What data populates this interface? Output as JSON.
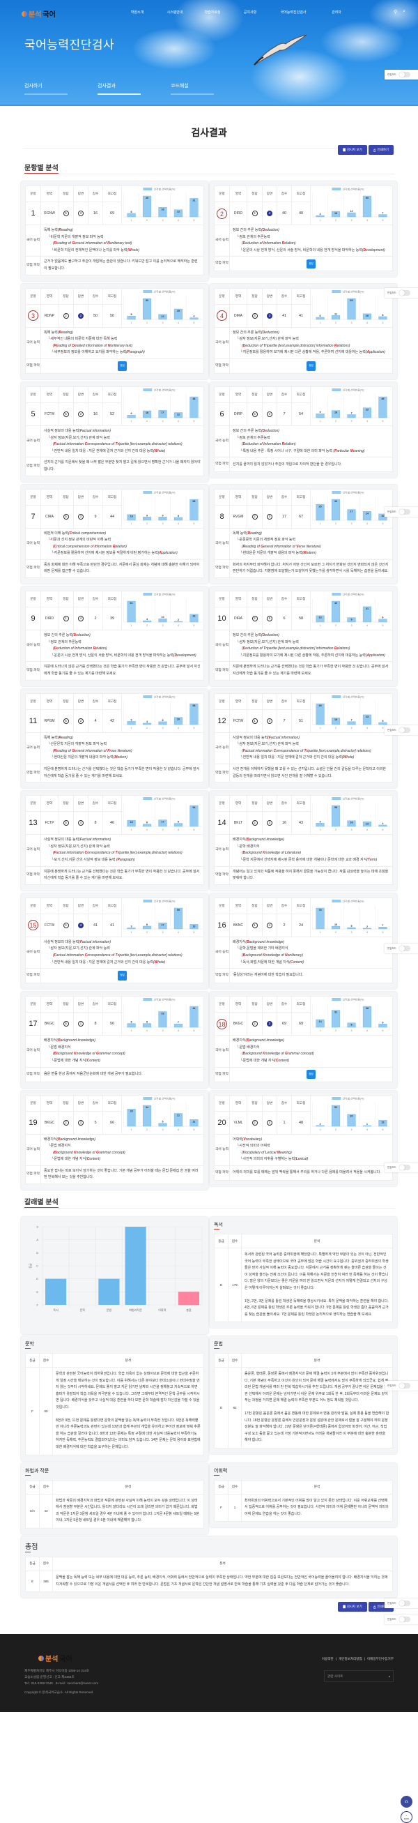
{
  "header": {
    "logo_a": "분석",
    "logo_b": "국어",
    "nav": [
      "학원소개",
      "시스템안내",
      "학습자료실",
      "공지사항",
      "국어능력진단검사",
      "관리자"
    ],
    "hero_title": "국어능력진단검사",
    "tabs": [
      {
        "label": "검사하기",
        "active": false
      },
      {
        "label": "검사결과",
        "active": true
      },
      {
        "label": "코드해설",
        "active": false
      }
    ]
  },
  "page_title": "검사결과",
  "buttons": {
    "view_sheet": "검사지 보기",
    "print": "인쇄하기"
  },
  "edit_mode_label": "편집모드",
  "item_section_title": "문항별 분석",
  "item_table": {
    "headers": [
      "문항",
      "영역",
      "정답",
      "답변",
      "점수",
      "최고점"
    ],
    "ability_label": "국어 능력",
    "weak_label": "약점 파악",
    "correct_badge": "정답",
    "legend": "선지별 선택비율(%)",
    "options": [
      "1",
      "2",
      "3",
      "4",
      "5"
    ]
  },
  "items": [
    {
      "no": "1",
      "area": "RGNW",
      "answer": "5",
      "response": "3",
      "score": "16",
      "max": "69",
      "correct": false,
      "dist": [
        6,
        35,
        16,
        12,
        31
      ],
      "ability": [
        {
          "ko": "독해 능력",
          "en": "(Reading)"
        },
        {
          "ko": "└비문학 지문의 개괄적 정보 파악 능력",
          "en": ""
        },
        {
          "ko": "",
          "en": "(Reading of General information of Nonliterary text)"
        },
        {
          "ko": "└비문학 지문의 전체적인 문맥이나 논지를 파악 능력",
          "en": "(Whole)"
        }
      ],
      "weak": "근거가 없음에도 불구하고 주관이 개입하는 습관이 있습니다. 키워드만 잡고 이를 논리적으로 해석하는 훈련이 필요합니다."
    },
    {
      "no": "2",
      "area": "DIRD",
      "answer": "4",
      "response": "4",
      "score": "40",
      "max": "40",
      "correct": true,
      "dist": [
        4,
        16,
        12,
        60,
        7
      ],
      "ability": [
        {
          "ko": "정보 간의 추론 능력",
          "en": "(Deduction)"
        },
        {
          "ko": "└정보 관계의 추론능력",
          "en": ""
        },
        {
          "ko": "",
          "en": "(Deduction of Information Relation)"
        },
        {
          "ko": "└운문의 시상 전개 방식, 산문의 서술 방식, 비문학의 내용 전개 방식을 파악하는 능력",
          "en": "(Development)"
        }
      ],
      "weak": ""
    },
    {
      "no": "3",
      "area": "RDNP",
      "answer": "2",
      "response": "2",
      "score": "50",
      "max": "50",
      "correct": true,
      "dist": [
        8,
        50,
        12,
        25,
        4
      ],
      "ability": [
        {
          "ko": "독해 능력",
          "en": "(Reading)"
        },
        {
          "ko": "└세부적인 내용의 비문학 지문에 대한 독해 능력",
          "en": ""
        },
        {
          "ko": "",
          "en": "(Reading of Detailed information of Nonliterary text)"
        },
        {
          "ko": "└세부정보의 정보를 이해하고 요지를 파악하는 능력",
          "en": "(Paragraph)"
        }
      ],
      "weak": ""
    },
    {
      "no": "4",
      "area": "DIRA",
      "answer": "3",
      "response": "3",
      "score": "41",
      "max": "41",
      "correct": true,
      "dist": [
        6,
        11,
        59,
        16,
        8
      ],
      "ability": [
        {
          "ko": "정보 간의 추론 능력",
          "en": "(Deduction)"
        },
        {
          "ko": "└삼자 정보(지문,보기,선지) 관계 파악 능력",
          "en": ""
        },
        {
          "ko": "",
          "en": "(Deduction of Tripartite [text,example,distractor] information Relations)"
        },
        {
          "ko": "└지문정보를 활용하여 보기에 제시된 다른 상황에 적용, 추론하여 선지에 대응하는 능력",
          "en": "(Application)"
        }
      ],
      "weak": ""
    },
    {
      "no": "5",
      "area": "FCTW",
      "answer": "5",
      "response": "2",
      "score": "16",
      "max": "52",
      "correct": false,
      "dist": [
        6,
        16,
        17,
        12,
        48
      ],
      "ability": [
        {
          "ko": "사실적 정보의 대응 능력",
          "en": "(Factual information)"
        },
        {
          "ko": "└삼자 정보(지문,보기,선지) 관계 파악 능력",
          "en": ""
        },
        {
          "ko": "",
          "en": "(Factual information Correspondence of Tripartite [text,example,distractor] relations)"
        },
        {
          "ko": "└전반적 내용 일치 대응 : 지문 전체에 걸쳐 근거와 선지 간의 대응 능력",
          "en": "(Whole)"
        }
      ],
      "weak": "선지의 근거를 지문에서 찾을 때 너무 짧은 부분만 찾지 말고 길게 읽으면서 명확한 근거가 나올 때까지 읽어야 합니다."
    },
    {
      "no": "6",
      "area": "DIRP",
      "answer": "5",
      "response": "3",
      "score": "7",
      "max": "54",
      "correct": false,
      "dist": [
        9,
        16,
        7,
        22,
        46
      ],
      "ability": [
        {
          "ko": "정보 간의 추론 능력",
          "en": "(Deduction)"
        },
        {
          "ko": "└정보 관계의 추론능력",
          "en": ""
        },
        {
          "ko": "",
          "en": "(Deduction of Information Relation)"
        },
        {
          "ko": "└특정 내용 추론 : 특정 시어나 시구, 구절에 대한 의미 파악 능력 ",
          "en": "(Particular Meaning)"
        }
      ],
      "weak": "선지를 끝까지 읽지 않았거나 주관의 개입으로 자의적 판단을 한 경우입니다."
    },
    {
      "no": "7",
      "area": "CIRA",
      "answer": "5",
      "response": "3",
      "score": "9",
      "max": "44",
      "correct": false,
      "dist": [
        16,
        9,
        9,
        8,
        58
      ],
      "ability": [
        {
          "ko": "비판적 이해 능력",
          "en": "(Critical comprehension)"
        },
        {
          "ko": "└지문과 선지 정보 관계의 비판적 이해 능력",
          "en": ""
        },
        {
          "ko": "",
          "en": "(Critical comprehension of Information Relation)"
        },
        {
          "ko": "└지문정보를 활용하여 선지에 제시된 정보를 적절하게 비판,평가하는 능력",
          "en": "(Application)"
        }
      ],
      "weak": "중심 화제에 대한 이해 부족으로 판단한 경우입니다. 지문에서 중심 화제는 개념에 대해 충분한 이해가 되어야 비판 문제를 접근할 수 있습니다."
    },
    {
      "no": "8",
      "area": "RVGM",
      "answer": "2",
      "response": "3",
      "score": "17",
      "max": "67",
      "correct": false,
      "dist": [
        25,
        33,
        17,
        14,
        10
      ],
      "ability": [
        {
          "ko": "독해 능력",
          "en": "(Reading)"
        },
        {
          "ko": "└운문문학 지문의 개괄적 정보 파악 능력",
          "en": ""
        },
        {
          "ko": "",
          "en": "(Reading of General information of Verse literature)"
        },
        {
          "ko": "└현대운문 지문의 개괄적 내용의 파악 능력",
          "en": "(Modern)"
        }
      ],
      "weak": "화자의 처지부터 파악해야 합니다. 처지가 어떤 것인지 모르면 그 처지가 변화된 것인지 변화되지 않은 것인지 판단하기 어렵습니다. 지향점에 도달했는가 도달하지 못했는가를 생각하면서 시를 독해하는 습관을 들이세요."
    },
    {
      "no": "9",
      "area": "DIRD",
      "answer": "1",
      "response": "4",
      "score": "2",
      "max": "39",
      "correct": false,
      "dist": [
        61,
        4,
        10,
        2,
        23
      ],
      "ability": [
        {
          "ko": "정보 간의 추론 능력",
          "en": "(Deduction)"
        },
        {
          "ko": "└정보 관계의 추론능력",
          "en": ""
        },
        {
          "ko": "",
          "en": "(Deduction of Information Relation)"
        },
        {
          "ko": "└운문의 시상 전개 방식, 산문의 서술 방식, 비문학의 내용 전개 방식을 파악하는 능력",
          "en": "(Development)"
        }
      ],
      "weak": "지문에 드러나지 않은 근거를 선택했다는 것은 학습 동기가 부족한 면이 작용한 것 같습니다. 공부에 앞서 자신에게 학습 동기를 줄 수 있는 계기를 마련해 보세요."
    },
    {
      "no": "10",
      "area": "DIRA",
      "answer": "2",
      "response": "5",
      "score": "6",
      "max": "58",
      "correct": false,
      "dist": [
        13,
        42,
        9,
        31,
        6
      ],
      "ability": [
        {
          "ko": "정보 간의 추론 능력",
          "en": "(Deduction)"
        },
        {
          "ko": "└삼자 정보(지문,보기,선지) 관계 파악 능력",
          "en": ""
        },
        {
          "ko": "",
          "en": "(Deduction of Tripartite [text,example,distractor] information Relations)"
        },
        {
          "ko": "└지문정보를 활용하여 보기에 제시된 다른 상황에 적용, 추론하여 선지에 대응하는 능력",
          "en": "(Application)"
        }
      ],
      "weak": "지문에 분명하게 드러나는 근거를 선택했다는 것은 학습 동기가 부족한 면이 작용한 것 같습니다. 공부에 앞서 자신에게 학습 동기를 줄 수 있는 계기를 마련해 보세요."
    },
    {
      "no": "11",
      "area": "RPGM",
      "answer": "5",
      "response": "2",
      "score": "4",
      "max": "42",
      "correct": false,
      "dist": [
        9,
        4,
        8,
        20,
        58
      ],
      "ability": [
        {
          "ko": "독해 능력",
          "en": "(Reading)"
        },
        {
          "ko": "└산문문학 지문의 개괄적 정보 파악 능력",
          "en": ""
        },
        {
          "ko": "",
          "en": "(Reading of General information of Prose literature)"
        },
        {
          "ko": "└현대산문 지문의 개괄적 내용의 파악 능력",
          "en": "(Modern)"
        }
      ],
      "weak": "지문에 분명하게 드러나는 근거를 선택했다는 것은 학습 동기가 부족한 면이 작용한 것 같습니다. 공부에 앞서 자신에게 학습 동기를 줄 수 있는 계기를 마련해 보세요."
    },
    {
      "no": "12",
      "area": "FCTW",
      "answer": "1",
      "response": "3",
      "score": "7",
      "max": "51",
      "correct": false,
      "dist": [
        49,
        16,
        7,
        23,
        5
      ],
      "ability": [
        {
          "ko": "사실적 정보의 대응 능력",
          "en": "(Factual information)"
        },
        {
          "ko": "└삼자 정보(지문,보기,선지) 관계 파악 능력",
          "en": ""
        },
        {
          "ko": "",
          "en": "(Factual information Correspondence of Tripartite [text,example,distractor] relations)"
        },
        {
          "ko": "└전반적 내용 일치 대응 : 지문 전체에 걸쳐 근거와 선지 간의 대응 능력",
          "en": "(Whole)"
        }
      ],
      "weak": "사건 전개를 이해하지 못했을 때 고를 수 있는 선지입니다. 소설은 인물 간의 갈등을 다루는 문학이고 이러한 갈등의 전개를 따라가면서 읽으면 사건 전개를 잘 이해할 수 있습니다."
    },
    {
      "no": "13",
      "area": "FCTP",
      "answer": "5",
      "response": "4",
      "score": "8",
      "max": "46",
      "correct": false,
      "dist": [
        16,
        6,
        17,
        8,
        54
      ],
      "ability": [
        {
          "ko": "사실적 정보의 대응 능력",
          "en": "(Factual information)"
        },
        {
          "ko": "└삼자 정보(지문,보기,선지) 관계 파악 능력",
          "en": ""
        },
        {
          "ko": "",
          "en": "(Factual information Correspondence of Tripartite [text,example,distractor] relations)"
        },
        {
          "ko": "└보기,선지,지문 간의 사실적 정보 대응 능력 ",
          "en": "(Paragraph)"
        }
      ],
      "weak": "지문에 분명하게 드러나는 근거를 선택했다는 것은 학습 동기가 부족한 면이 작용한 것 같습니다. 공부에 앞서 자신에게 학습 동기를 줄 수 있는 계기를 마련해 보세요."
    },
    {
      "no": "14",
      "area": "BKLT",
      "answer": "2",
      "response": "3",
      "score": "16",
      "max": "43",
      "correct": false,
      "dist": [
        9,
        58,
        16,
        13,
        4
      ],
      "ability": [
        {
          "ko": "배경지식",
          "en": "(Background knowledge)"
        },
        {
          "ko": "└문학 배경지식",
          "en": ""
        },
        {
          "ko": "",
          "en": "(Background Knowledge of Literature)"
        },
        {
          "ko": "└문학 지문에서 선택지에 제시된 문학 용어에 대한 개념이나 문학에 대한 교과 배경 지식",
          "en": "(Term)"
        }
      ],
      "weak": "개념어는 알고 있지만 작품에 적용을 하지 못해서 골랐을 가능성이 큽니다. 작품 감상력을 높이는 데에 초점을 맞춰야 합니다."
    },
    {
      "no": "15",
      "area": "FCTW",
      "answer": "4",
      "response": "4",
      "score": "41",
      "max": "41",
      "correct": true,
      "dist": [
        3,
        8,
        17,
        59,
        13
      ],
      "ability": [
        {
          "ko": "사실적 정보의 대응 능력",
          "en": "(Factual information)"
        },
        {
          "ko": "└삼자 정보(지문,보기,선지) 관계 파악 능력",
          "en": ""
        },
        {
          "ko": "",
          "en": "(Factual information Correspondence of Tripartite [text,example,distractor] relations)"
        },
        {
          "ko": "└전반적 내용 일치 대응 : 지문 전체에 걸쳐 근거와 선지 간의 대응 능력",
          "en": "(Whole)"
        }
      ],
      "weak": ""
    },
    {
      "no": "16",
      "area": "BKNC",
      "answer": "1",
      "response": "4",
      "score": "2",
      "max": "24",
      "correct": false,
      "dist": [
        76,
        10,
        5,
        2,
        7
      ],
      "ability": [
        {
          "ko": "배경지식",
          "en": "(Background knowledge)"
        },
        {
          "ko": "└문학,문법을 제외한 기타 배경지식",
          "en": ""
        },
        {
          "ko": "",
          "en": "(Background Knowledge of Nonliterary)"
        },
        {
          "ko": "└독서,화법,작문에 대한 개념 지식",
          "en": "(Content)"
        }
      ],
      "weak": "'동일성'이라는 개념어에 대한 학습이 필요합니다."
    },
    {
      "no": "17",
      "area": "BKGC",
      "answer": "5",
      "response": "1",
      "score": "8",
      "max": "56",
      "correct": false,
      "dist": [
        8,
        8,
        33,
        7,
        44
      ],
      "ability": [
        {
          "ko": "배경지식",
          "en": "(Background knowledge)"
        },
        {
          "ko": "└문법 배경지식",
          "en": ""
        },
        {
          "ko": "",
          "en": "(Background Knowledge of Grammar concept)"
        },
        {
          "ko": "└문법에 대한 개념 지식",
          "en": "(Content)"
        }
      ],
      "weak": "음운 변동 현상 중에서 자음군단순화에 대한 개념 공부가 필요합니다."
    },
    {
      "no": "18",
      "area": "BKGC",
      "answer": "2",
      "response": "2",
      "score": "69",
      "max": "69",
      "correct": true,
      "dist": [
        14,
        31,
        8,
        38,
        6
      ],
      "ability": [
        {
          "ko": "배경지식",
          "en": "(Background knowledge)"
        },
        {
          "ko": "└문법 배경지식",
          "en": ""
        },
        {
          "ko": "",
          "en": "(Background Knowledge of Grammar concept)"
        },
        {
          "ko": "└문법에 대한 개념 지식",
          "en": "(Content)"
        }
      ],
      "weak": ""
    },
    {
      "no": "19",
      "area": "BKGC",
      "answer": "2",
      "response": "3",
      "score": "5",
      "max": "66",
      "correct": false,
      "dist": [
        28,
        34,
        5,
        21,
        11
      ],
      "ability": [
        {
          "ko": "배경지식",
          "en": "(Background knowledge)"
        },
        {
          "ko": "└문법 배경지식",
          "en": ""
        },
        {
          "ko": "",
          "en": "(Background Knowledge of Grammar concept)"
        },
        {
          "ko": "└문법에 대한 개념 지식",
          "en": "(Content)"
        }
      ],
      "weak": "중요한 접사는 따로 모아서 암기하는 것이 좋습니다. 기본 개념 공부가 어려울 때는 문법 문제집 한 권을 여러 번 반복해서 보는 것을 추천합니다."
    },
    {
      "no": "20",
      "area": "VLML",
      "answer": "2",
      "response": "4",
      "score": "1",
      "max": "48",
      "correct": false,
      "dist": [
        2,
        52,
        30,
        1,
        15
      ],
      "ability": [
        {
          "ko": "어휘력",
          "en": "(Vocabulary)"
        },
        {
          "ko": "└사전적 의미의 어휘력",
          "en": ""
        },
        {
          "ko": "",
          "en": "(Vocabulary of Lexical Meaning)"
        },
        {
          "ko": "└사전적 의미의 어휘를 구별하는 능력",
          "en": "(Lexical)"
        }
      ],
      "weak": "어휘의 의미를 모를 때에는 앞뒤 맥락을 통해서 추리를 하거나 다른 용례를 떠올려서 적용을 시켜봅니다."
    }
  ],
  "genre_section_title": "갈래별 분석",
  "genre_table_headers": [
    "등급",
    "점수",
    "분석"
  ],
  "chart_data": {
    "type": "bar",
    "title": "",
    "categories": [
      "독서",
      "문학",
      "문법",
      "화법과작문",
      "어휘력",
      "총점"
    ],
    "values": [
      "D",
      "F",
      "D",
      "S",
      "F",
      "E"
    ],
    "grade_scale": [
      "F",
      "E",
      "D",
      "C",
      "B",
      "A",
      "S"
    ],
    "ylabel": "등급",
    "xlabel": "",
    "colors": [
      "#6cb9ee",
      "#6cb9ee",
      "#6cb9ee",
      "#6cb9ee",
      "#6cb9ee",
      "#ff839e"
    ],
    "grid": true
  },
  "genres": [
    {
      "title": "독서",
      "grade": "D",
      "score": "179",
      "paras": [
        "독서와 관련된 국어 능력은 중하위권에 해당합니다. 특별하게 약한 부분이 있는 것이 아닌, 전반적인 국어 능력이 부족한 상태이므로 국어 공부에 많은 학습 시간이 요구됩니다. 중위권과 중하위권의 학생들은 먼저 사실적 이해 능력이 중요합니다. 지문에서 근거를 정확하게 찾는 올바른 습관을 들이는 것이 성적을 올리는 전제 조건이 됩니다. 이를 위해서는 지문을 천천히 여러 번 독해를 하는 것이 좋습니다. 많은 양의 지문보다는 좋은 지문을 여러 번 읽으면서 지문과 선지가 어떻게 연결되고 선지의 구성은 어떻게 이루어지는지 살펴보는 것이 좋습니다.",
        "1번, 2번, 3번 문제를 틀린 학생은 독해력을 향상시키세요. 특히 문맥을 파악하는 훈련을 해야 합니다. 4번, 6번 문제를 틀린 학생은 추론 능력을 키워야 합니다. 5번 문제를 틀린 학생은 좀더 꼼꼼하게 근거를 찾는 습관을 들이세요. 7번 문제를 틀린 학생은 논리적으로 생각하는 연습을 해 보세요."
      ]
    },
    {
      "title": "문학",
      "grade": "F",
      "score": "60",
      "paras": [
        "문학과 관련된 국어능력이 최하위권입니다. 학습 의욕이 없는 상태이므로 문학에 대한 접근을 꾸준하게 일정 시간을 확보하는 것이 필요합니다. 이를 위해서는 다른 분야보다 현대소설이나 현대수필을 먼저 읽는 것부터 시작하세요. 문제도 풀지 말고 지문 읽기만 날짜와 시간을 정해놓고 지속적으로 하면 흥미가 유발되어 학습 의욕을 자극받을 수 있습니다. 그러면 그때부터 본격적인 문학 공부를 시작하시면 됩니다. 배경지식을 갖추고 사실적 대응 훈련을 하다 보면 문학 학습에 점차 자신감을 가질 수 있을 것입니다.",
        "8번과 9번, 11번 문제를 틀렸다면 문학의 문맥을 읽는 독해 능력이 부족한 것입니다. 9번은 독해력뿐만 아니라 추론능력과도 관련이 있는데 10번과 함께 주관의 개입을 유의하고 주어진 정보에 맞춰 추론을 하는 습관을 길러야 합니다. 8번과 13번 문제는 특정 구절에 대한 사실적 대응능력이 부족하기도 하지만 독해력, 추론능력도 결합되어있다는 의미도 담겨 있습니다. 14번 문제는 문학 용어와 표현법에 대한 배경지식에 대한 학습을 요구하는 문제입니다."
      ]
    },
    {
      "title": "문법",
      "grade": "D",
      "score": "82",
      "paras": [
        "음운론, 형태론, 문장론 등에서 배경지식과 문제 해결 능력이 3개 부분에서 많이 부족한 중하위권입니다. 기본 개념이 부족하고 이것이 원인이 되어 문제 해결 능력에서도 많이 부족하게 되었군요. 쉽게 정리된 문법 개념서를 여러 번 반복 학습하시기를 추천 드립니다. 개념 공부가 끝나면 쉬운 문제집을 한 권 선택해서 어려운 문제는 넘어가면서 쉬운 문제 위주로 1회독 한 후, 2회독부터 어려운 문제도 같이 푸는 과정을 거치면 문제 해결 능력의 부족한 부분도 어느 정도 채워질 것입니다.",
        "17번 문항은 음운론 중에서 음운 변동에 대한 문제로서 변동 원리와 발음, 실제 활용 등을 연습해야 합니다. 18번 문항은 문장론 중에서 안은문장과 문장 성분에 관한 문제로서 절을 잘 구분해야 하며 문장 성분도 잘 파악해야 합니다. 19번 문항은 단어론(=형태론) 중에서 합성어와 파생어, 어간, 어근, 직접 구성 요소 등을 묻고 있는데 가장 기본적이면서도 어려운 개념들이라 이 부분에 대한 충분한 훈련을 해야 합니다."
      ]
    },
    {
      "title": "화법과 작문",
      "grade": "S/A",
      "score": "43",
      "paras": [
        "화법과 작문의 배경지식과 화법과 작문에 관련된 사실적 이해 능력이 모두 갖춘 상태입니다. 이 상태에서 점검할 부분은 시간입니다. 틀리지 않더라도 시간이 오래 걸리면 의미가 없기 때문입니다. 화법과 작문은 1지문 3문항 세트일 경우 4분 이내에 풀 수 있어야 합니다. 1지문 4문항 세트일 때에는 5분 이내, 1지문 5문항 세트일 경우 6분 이내에 해결해야 합니다."
      ]
    },
    {
      "title": "어휘력",
      "grade": "F",
      "score": "1",
      "paras": [
        "최하위권의 어휘력으로서 기본적인 어휘를 많이 알고 있지 못한 상태입니다. 쉬운 어휘교재를 선택해서 집중적으로 어휘를 공부하는 것이 필요합니다. 사전적 의미의 어휘 문제뿐만 아니라 문맥적 의미의 어휘 문제도 연습을 하는 것이 좋습니다."
      ]
    },
    {
      "title": "총점",
      "grade": "E",
      "score": "365",
      "paras": [
        "문맥을 잡는 독해 능력 또는 세부 내용에 대한 대응 능력, 추론 능력, 배경지식, 어휘력 등에서 전반적으로 실력이 부족한 상태입니다. 약한 부분에 대한 집중 보완보다는 전반적인 국어능력을 끌어올려야 합니다. 배경지식을 익히는 것에 지겨워할 수 있으므로 가장 쉬운 개념서를 선택한 후 여러 번 반복합니다. 문법은 기초 개념서로 문학은 간단한 개념 설명서로 반복 학습을 통해 기초 실력을 갖춘 후 다음 학습 단계로 넘어가는 것이 좋습니다."
      ]
    }
  ],
  "footer": {
    "logo_a": "분석",
    "logo_b": "국어",
    "address": "제주특별자치도 제주시 이도이동 1059-14 314호",
    "registration": "교습소설립·운영신고 : 신고 제2464호",
    "contact": "Tel : 010-2269-7646   E-mail : seochant@naver.com",
    "copyright": "Copyright © 분석국어교습소. All Rights Reserved.",
    "links": [
      "이용약관",
      "개인정보처리방침",
      "이메일무단수집거부"
    ],
    "related_select": "관련 사이트",
    "scroll_percent": "100%"
  }
}
